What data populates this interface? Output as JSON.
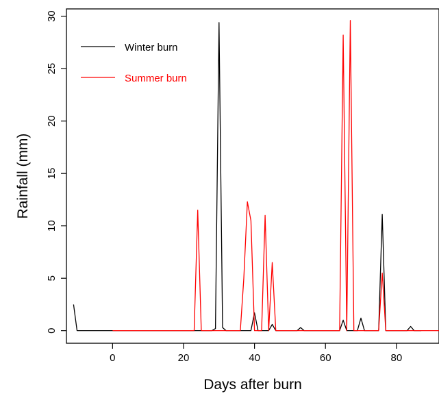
{
  "chart_data": {
    "type": "line",
    "xlabel": "Days after burn",
    "ylabel": "Rainfall (mm)",
    "xlim": [
      -13,
      92
    ],
    "ylim": [
      -1.2,
      30.7
    ],
    "xticks": [
      0,
      20,
      40,
      60,
      80
    ],
    "yticks": [
      0,
      5,
      10,
      15,
      20,
      25,
      30
    ],
    "grid": false,
    "legend": "top-left",
    "series": [
      {
        "name": "Winter burn",
        "color": "#000000",
        "points": [
          [
            -11,
            2.5
          ],
          [
            -10,
            0
          ],
          [
            -1,
            0
          ],
          [
            28,
            0
          ],
          [
            29,
            0.2
          ],
          [
            30,
            29.4
          ],
          [
            31,
            0.3
          ],
          [
            32,
            0
          ],
          [
            39,
            0
          ],
          [
            40,
            1.7
          ],
          [
            41,
            0
          ],
          [
            44,
            0
          ],
          [
            45,
            0.6
          ],
          [
            46,
            0
          ],
          [
            52,
            0
          ],
          [
            53,
            0.3
          ],
          [
            54,
            0
          ],
          [
            64,
            0
          ],
          [
            65,
            1.0
          ],
          [
            66,
            0
          ],
          [
            69,
            0
          ],
          [
            70,
            1.2
          ],
          [
            71,
            0
          ],
          [
            75,
            0
          ],
          [
            76,
            11.1
          ],
          [
            77,
            0
          ],
          [
            83,
            0
          ],
          [
            84,
            0.4
          ],
          [
            85,
            0
          ],
          [
            87,
            0
          ]
        ]
      },
      {
        "name": "Summer burn",
        "color": "#ff0000",
        "points": [
          [
            0,
            0
          ],
          [
            23,
            0
          ],
          [
            24,
            11.5
          ],
          [
            25,
            0
          ],
          [
            36,
            0
          ],
          [
            37,
            5
          ],
          [
            38,
            12.3
          ],
          [
            39,
            10.5
          ],
          [
            40,
            0
          ],
          [
            42,
            0
          ],
          [
            43,
            11.0
          ],
          [
            44,
            0
          ],
          [
            45,
            6.5
          ],
          [
            46,
            0
          ],
          [
            64,
            0
          ],
          [
            65,
            28.2
          ],
          [
            66,
            0
          ],
          [
            67,
            29.6
          ],
          [
            68,
            0
          ],
          [
            75,
            0
          ],
          [
            76,
            5.5
          ],
          [
            77,
            0
          ],
          [
            92,
            0
          ]
        ]
      }
    ]
  }
}
